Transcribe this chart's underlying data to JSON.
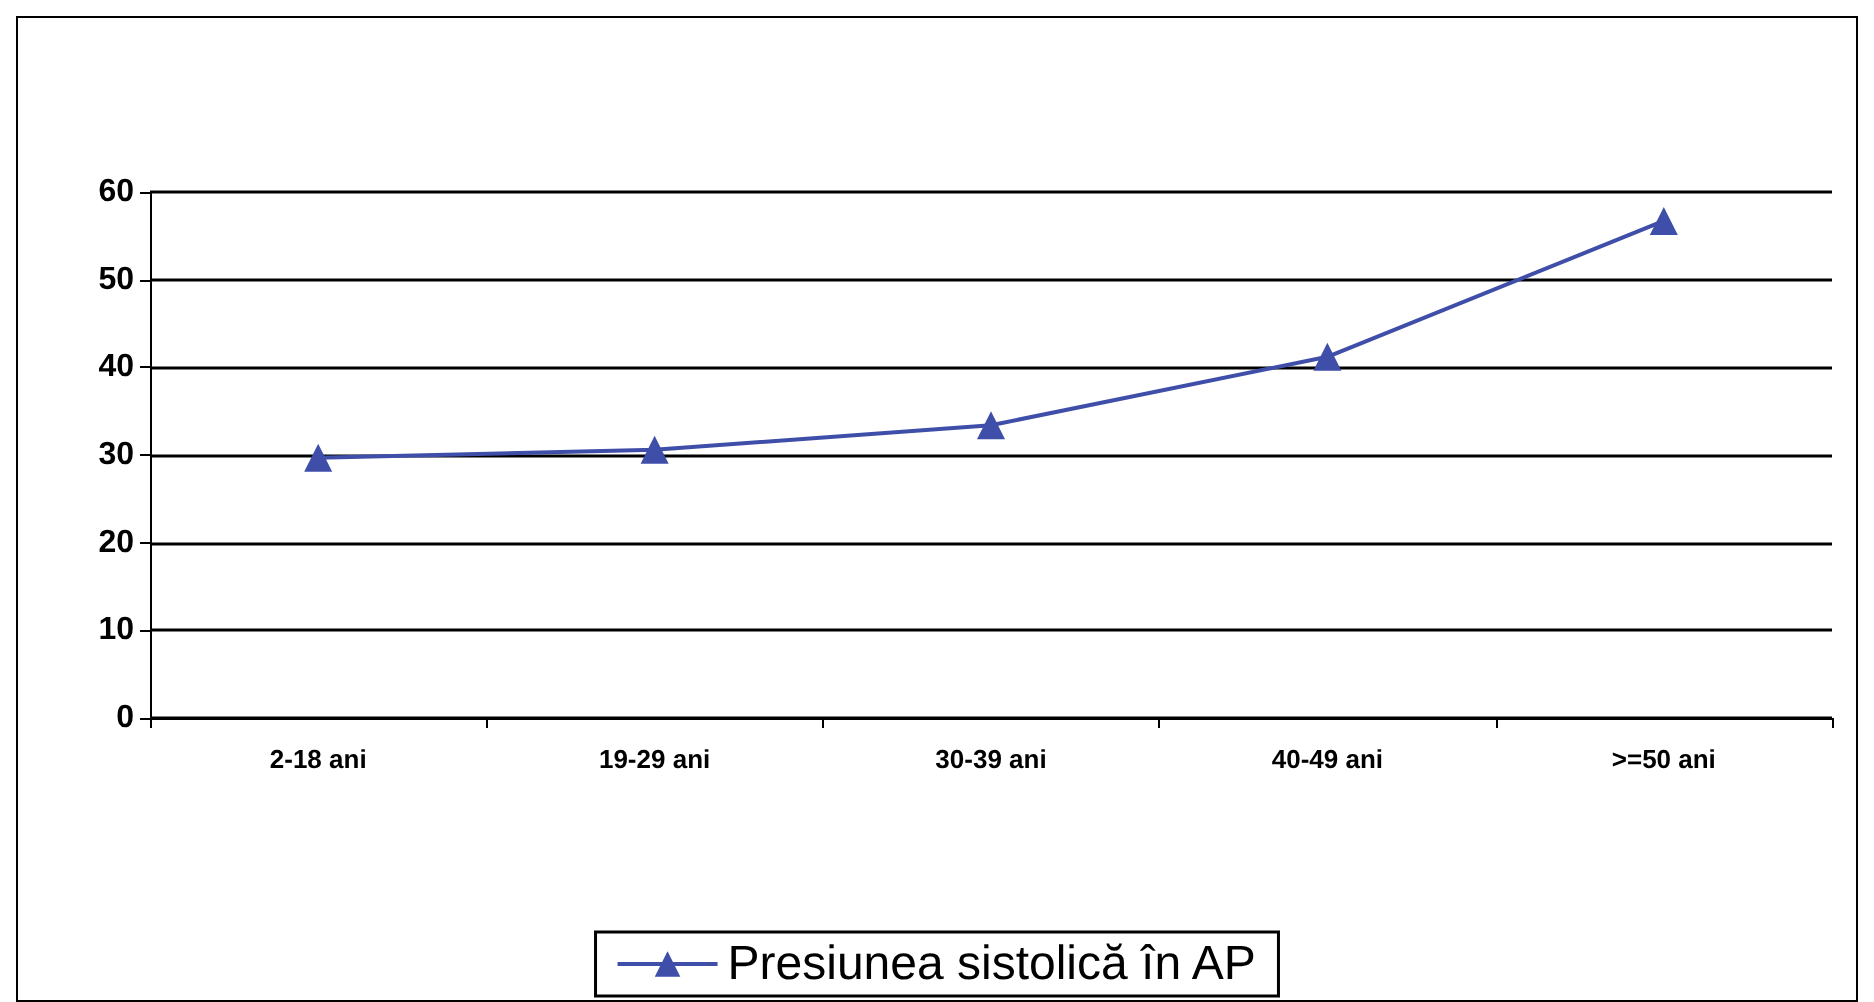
{
  "chart_data": {
    "type": "line",
    "categories": [
      "2-18 ani",
      "19-29 ani",
      "30-39 ani",
      "40-49 ani",
      ">=50 ani"
    ],
    "series": [
      {
        "name": "Presiunea sistolică în AP",
        "color": "#3f4ea8",
        "values": [
          29.7,
          30.6,
          33.4,
          41.2,
          56.7
        ]
      }
    ],
    "ylim": [
      0,
      60
    ],
    "yticks": [
      0,
      10,
      20,
      30,
      40,
      50,
      60
    ],
    "grid": "y",
    "legend": "bottom",
    "marker": "triangle"
  }
}
